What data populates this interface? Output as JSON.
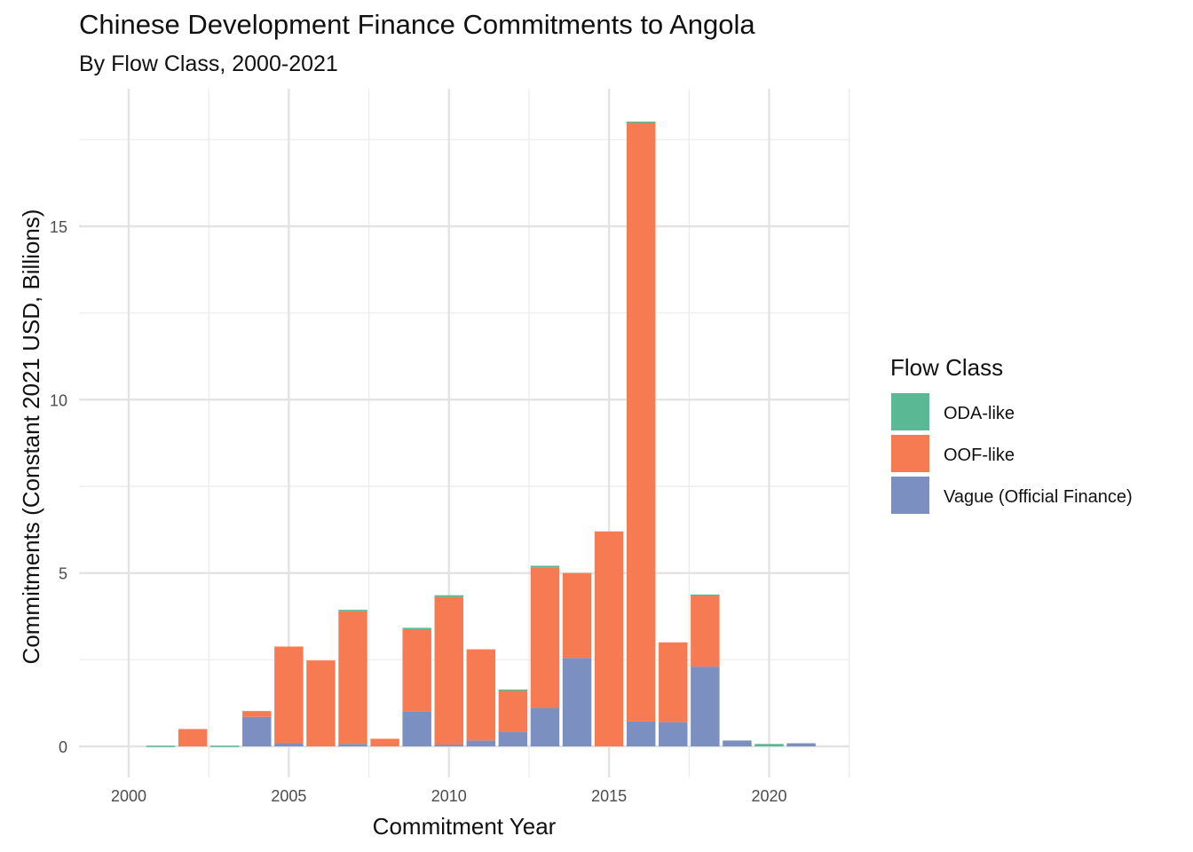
{
  "chart_data": {
    "type": "bar",
    "stacked": true,
    "title": "Chinese Development Finance Commitments to Angola",
    "subtitle": "By Flow Class, 2000-2021",
    "xlabel": "Commitment Year",
    "ylabel": "Commitments (Constant 2021 USD, Billions)",
    "xlim": [
      1998.5,
      2022.5
    ],
    "ylim": [
      -0.75,
      18.9
    ],
    "x_ticks": [
      2000,
      2005,
      2010,
      2015,
      2020
    ],
    "y_ticks": [
      0,
      5,
      10,
      15
    ],
    "grid": true,
    "legend": {
      "title": "Flow Class",
      "position": "right"
    },
    "x": [
      2001,
      2002,
      2003,
      2004,
      2005,
      2006,
      2007,
      2008,
      2009,
      2010,
      2011,
      2012,
      2013,
      2014,
      2015,
      2016,
      2017,
      2018,
      2019,
      2020,
      2021
    ],
    "series": [
      {
        "name": "Vague (Official Finance)",
        "color": "#7b8fc0",
        "values": [
          0,
          0,
          0,
          0.85,
          0.1,
          0,
          0.07,
          0,
          1.0,
          0.05,
          0.17,
          0.42,
          1.1,
          2.55,
          0,
          0.72,
          0.7,
          2.3,
          0.17,
          0,
          0.09
        ]
      },
      {
        "name": "OOF-like",
        "color": "#f77b52",
        "values": [
          0,
          0.5,
          0,
          0.17,
          2.78,
          2.48,
          3.83,
          0.22,
          2.38,
          4.26,
          2.63,
          1.2,
          4.05,
          2.45,
          6.2,
          17.28,
          2.3,
          2.05,
          0,
          0,
          0
        ]
      },
      {
        "name": "ODA-like",
        "color": "#5bb894",
        "values": [
          0.02,
          0,
          0.02,
          0,
          0,
          0,
          0.04,
          0,
          0.04,
          0.05,
          0,
          0.02,
          0.06,
          0,
          0,
          0.02,
          0,
          0.03,
          0,
          0.07,
          0
        ]
      }
    ],
    "legend_order": [
      "ODA-like",
      "OOF-like",
      "Vague (Official Finance)"
    ]
  }
}
